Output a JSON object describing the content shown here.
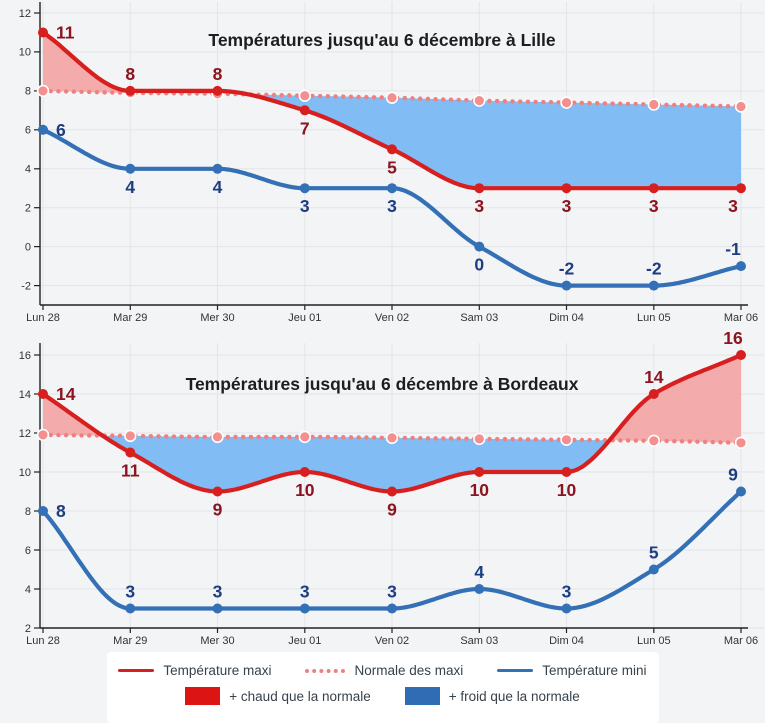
{
  "legend": {
    "maxi_label": "Température maxi",
    "normale_label": "Normale des maxi",
    "mini_label": "Température mini",
    "warm_label": "+ chaud que la normale",
    "cold_label": "+ froid que la normale"
  },
  "colors": {
    "maxi_line": "#d81f1f",
    "normale_line": "#f08080",
    "mini_line": "#3470b5",
    "warm_fill": "#f2a5a5",
    "cold_fill": "#7cb9f4",
    "warm_swatch": "#dd1414",
    "cold_swatch": "#2f6cb3",
    "maxi_value_color": "#8b1420",
    "mini_value_color": "#1c3d82",
    "axis_color": "#222222",
    "grid_color": "#e3e5e8",
    "title_color": "#1e1e1e",
    "tick_label_color": "#333333"
  },
  "chart_data": [
    {
      "type": "line",
      "title": "Températures jusqu'au 6 décembre à Lille",
      "categories": [
        "Lun 28",
        "Mar 29",
        "Mer 30",
        "Jeu 01",
        "Ven 02",
        "Sam 03",
        "Dim 04",
        "Lun 05",
        "Mar 06"
      ],
      "series": [
        {
          "role": "maxi",
          "name": "Température maxi",
          "style": "solid",
          "labeled": true,
          "values": [
            11,
            8,
            8,
            7,
            5,
            3,
            3,
            3,
            3
          ],
          "label_side": [
            "right",
            "above",
            "above",
            "below",
            "below",
            "below",
            "below",
            "below",
            "below"
          ]
        },
        {
          "role": "normale",
          "name": "Normale des maxi",
          "style": "dotted",
          "labeled": false,
          "values": [
            8,
            7.9,
            7.85,
            7.75,
            7.65,
            7.5,
            7.4,
            7.3,
            7.2
          ]
        },
        {
          "role": "mini",
          "name": "Température mini",
          "style": "solid",
          "labeled": true,
          "values": [
            6,
            4,
            4,
            3,
            3,
            0,
            -2,
            -2,
            -1
          ],
          "label_side": [
            "right",
            "below",
            "below",
            "below",
            "below",
            "below",
            "above",
            "above",
            "above"
          ]
        }
      ],
      "fill_between": {
        "above_normale": "+ chaud que la normale",
        "below_normale": "+ froid que la normale"
      },
      "ylim": [
        -3,
        12
      ],
      "yticks": [
        -2,
        0,
        2,
        4,
        6,
        8,
        10,
        12
      ],
      "grid": true,
      "legend_position": "bottom"
    },
    {
      "type": "line",
      "title": "Températures jusqu'au 6 décembre à Bordeaux",
      "categories": [
        "Lun 28",
        "Mar 29",
        "Mer 30",
        "Jeu 01",
        "Ven 02",
        "Sam 03",
        "Dim 04",
        "Lun 05",
        "Mar 06"
      ],
      "series": [
        {
          "role": "maxi",
          "name": "Température maxi",
          "style": "solid",
          "labeled": true,
          "values": [
            14,
            11,
            9,
            10,
            9,
            10,
            10,
            14,
            16
          ],
          "label_side": [
            "right",
            "below",
            "below",
            "below",
            "below",
            "below",
            "below",
            "above",
            "above"
          ]
        },
        {
          "role": "normale",
          "name": "Normale des maxi",
          "style": "dotted",
          "labeled": false,
          "values": [
            11.9,
            11.85,
            11.8,
            11.8,
            11.75,
            11.7,
            11.65,
            11.6,
            11.5
          ]
        },
        {
          "role": "mini",
          "name": "Température mini",
          "style": "solid",
          "labeled": true,
          "values": [
            8,
            3,
            3,
            3,
            3,
            4,
            3,
            5,
            9
          ],
          "label_side": [
            "right",
            "above",
            "above",
            "above",
            "above",
            "above",
            "above",
            "above",
            "above"
          ]
        }
      ],
      "fill_between": {
        "above_normale": "+ chaud que la normale",
        "below_normale": "+ froid que la normale"
      },
      "ylim": [
        2,
        16
      ],
      "yticks": [
        2,
        4,
        6,
        8,
        10,
        12,
        14,
        16
      ],
      "grid": true,
      "legend_position": "bottom"
    }
  ]
}
